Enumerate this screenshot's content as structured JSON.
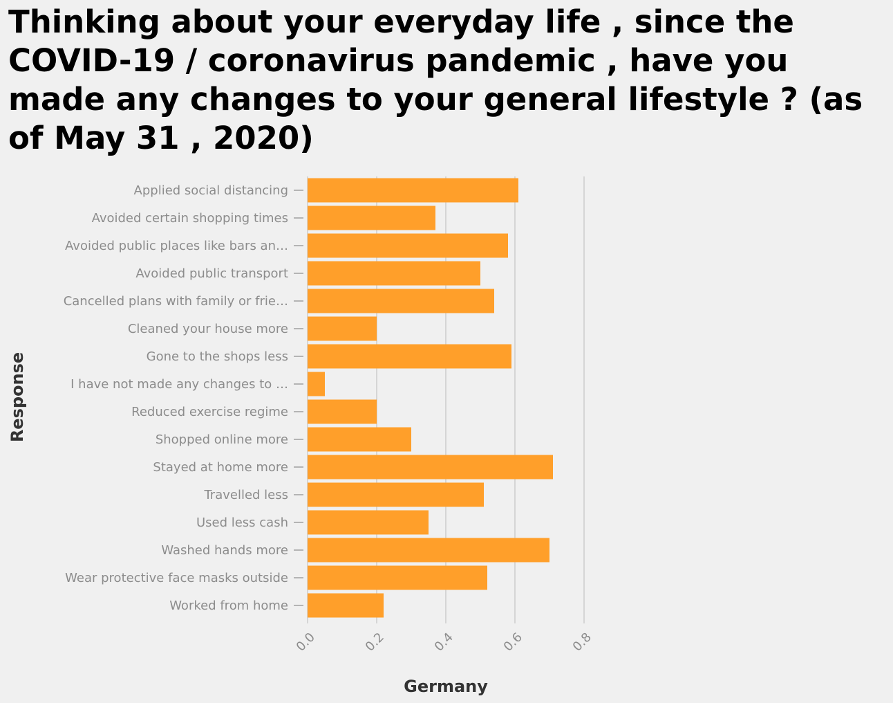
{
  "chart_data": {
    "type": "bar",
    "orientation": "horizontal",
    "title": "Thinking about your everyday life , since the COVID-19 / coronavirus pandemic , have you made any changes to your general lifestyle ? (as of May 31 , 2020)",
    "xlabel": "Germany",
    "ylabel": "Response",
    "xlim": [
      0,
      0.8
    ],
    "xticks": [
      "0.0",
      "0.2",
      "0.4",
      "0.6",
      "0.8"
    ],
    "grid": true,
    "bar_color": "#ff9f2a",
    "categories": [
      "Applied social distancing",
      "Avoided certain shopping times",
      "Avoided public places like bars an…",
      "Avoided public transport",
      "Cancelled plans with family or frie…",
      "Cleaned your house more",
      "Gone to the shops less",
      "I have not made any changes to …",
      "Reduced exercise regime",
      "Shopped online more",
      "Stayed at home more",
      "Travelled less",
      "Used less cash",
      "Washed hands more",
      "Wear protective face masks outside",
      "Worked from home"
    ],
    "values": [
      0.61,
      0.37,
      0.58,
      0.5,
      0.54,
      0.2,
      0.59,
      0.05,
      0.2,
      0.3,
      0.71,
      0.51,
      0.35,
      0.7,
      0.52,
      0.22
    ]
  }
}
